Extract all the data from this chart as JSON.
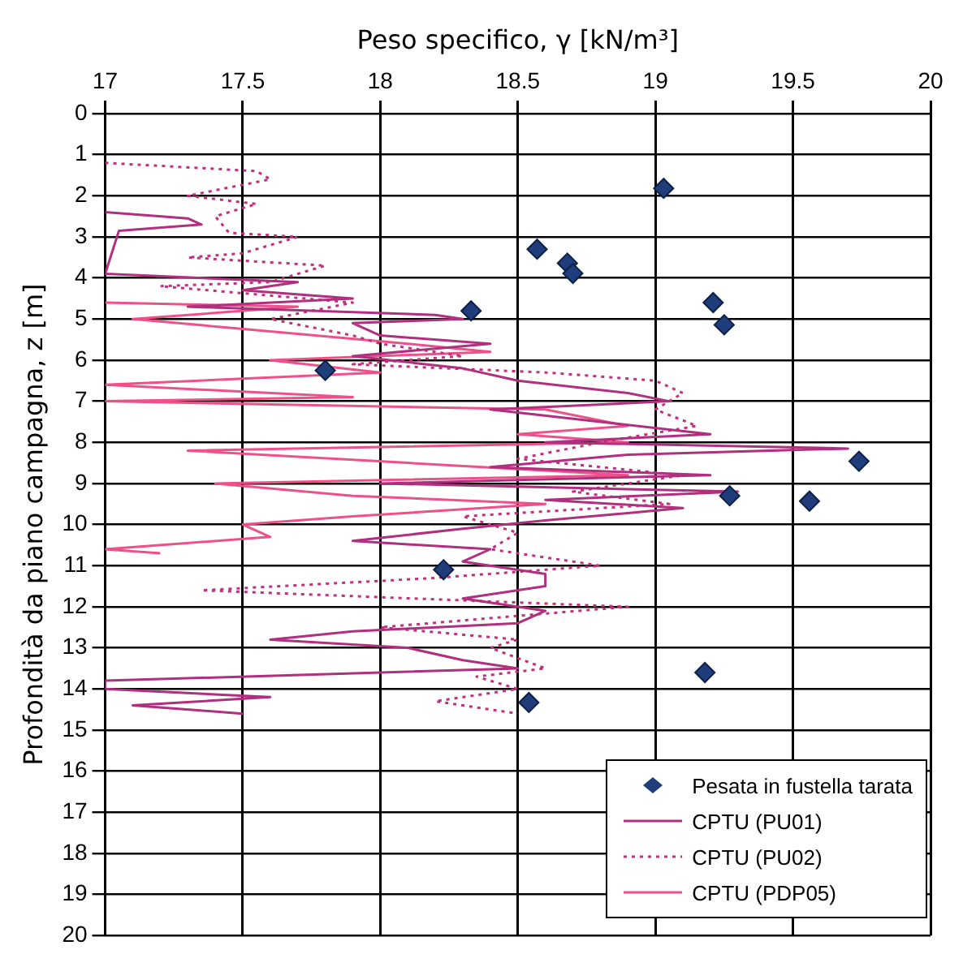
{
  "chart_data": {
    "type": "scatter",
    "xlabel": "Peso specifico, γ [kN/m³]",
    "ylabel": "Profondità da piano campagna, z [m]",
    "xlim": [
      17,
      20
    ],
    "xticks": [
      17,
      17.5,
      18,
      18.5,
      19,
      19.5,
      20
    ],
    "ylim": [
      20,
      0
    ],
    "yticks": [
      0,
      1,
      2,
      3,
      4,
      5,
      6,
      7,
      8,
      9,
      10,
      11,
      12,
      13,
      14,
      15,
      16,
      17,
      18,
      19,
      20
    ],
    "grid": true,
    "legend": "bottom right",
    "series": [
      {
        "name": "Pesata in fustella tarata",
        "type": "scatter",
        "marker": "diamond",
        "color": "#1f3d7a",
        "x": [
          19.03,
          18.57,
          18.68,
          18.7,
          19.21,
          19.25,
          18.33,
          17.8,
          19.74,
          19.27,
          19.56,
          18.23,
          19.18,
          18.54
        ],
        "values": [
          1.82,
          3.3,
          3.64,
          3.89,
          4.6,
          5.14,
          4.8,
          6.25,
          8.46,
          9.3,
          9.43,
          11.1,
          13.6,
          14.33
        ]
      },
      {
        "name": "CPTU (PU01)",
        "type": "line",
        "line_style": "solid",
        "color": "#b0307f",
        "x": [
          17.0,
          17.3,
          17.35,
          17.05,
          17.0,
          17.7,
          17.5,
          17.9,
          17.3,
          18.2,
          18.3,
          17.9,
          18.0,
          18.4,
          17.9,
          18.3,
          18.5,
          18.9,
          19.05,
          18.4,
          18.8,
          19.2,
          18.6,
          19.7,
          18.9,
          18.4,
          19.2,
          18.0,
          19.3,
          18.6,
          19.1,
          18.6,
          18.3,
          17.9,
          18.4,
          18.3,
          18.6,
          18.6,
          18.3,
          18.6,
          18.5,
          17.9,
          17.6,
          18.1,
          18.3,
          18.5,
          17.0,
          17.0,
          17.6,
          17.1,
          17.5
        ],
        "values": [
          2.4,
          2.55,
          2.7,
          2.85,
          3.9,
          4.1,
          4.3,
          4.5,
          4.7,
          4.9,
          5.0,
          5.1,
          5.4,
          5.6,
          5.9,
          6.2,
          6.5,
          6.8,
          7.0,
          7.2,
          7.5,
          7.8,
          8.0,
          8.15,
          8.3,
          8.6,
          8.8,
          9.0,
          9.2,
          9.4,
          9.6,
          9.9,
          10.1,
          10.4,
          10.6,
          10.9,
          11.2,
          11.5,
          11.8,
          12.1,
          12.4,
          12.6,
          12.8,
          13.0,
          13.3,
          13.5,
          13.8,
          14.0,
          14.2,
          14.4,
          14.6
        ]
      },
      {
        "name": "CPTU (PU02)",
        "type": "line",
        "line_style": "dotted",
        "color": "#c0307f",
        "x": [
          17.0,
          17.55,
          17.6,
          17.3,
          17.55,
          17.4,
          17.45,
          17.7,
          17.5,
          17.3,
          17.8,
          17.6,
          17.2,
          17.9,
          17.6,
          17.9,
          18.0,
          18.3,
          17.9,
          18.6,
          19.0,
          19.1,
          19.0,
          19.15,
          18.8,
          18.5,
          19.1,
          18.7,
          19.05,
          18.3,
          18.5,
          18.4,
          18.8,
          18.2,
          17.35,
          18.9,
          18.0,
          18.5,
          18.4,
          18.6,
          18.35,
          18.5,
          18.2,
          18.5
        ],
        "values": [
          1.2,
          1.4,
          1.6,
          2.0,
          2.2,
          2.5,
          2.9,
          3.0,
          3.4,
          3.5,
          3.7,
          4.1,
          4.2,
          4.6,
          5.0,
          5.4,
          5.6,
          5.9,
          6.1,
          6.3,
          6.5,
          6.8,
          7.2,
          7.6,
          8.0,
          8.4,
          8.8,
          9.2,
          9.5,
          9.8,
          10.2,
          10.6,
          11.0,
          11.3,
          11.6,
          12.0,
          12.5,
          12.8,
          13.0,
          13.5,
          13.7,
          14.0,
          14.3,
          14.6
        ]
      },
      {
        "name": "CPTU (PDP05)",
        "type": "line",
        "line_style": "solid",
        "color": "#f0508a",
        "x": [
          17.0,
          17.7,
          17.1,
          17.6,
          18.1,
          18.4,
          17.6,
          18.0,
          17.0,
          17.9,
          17.0,
          18.6,
          18.9,
          18.5,
          18.9,
          17.3,
          18.1,
          18.9,
          17.4,
          17.9,
          18.6,
          17.9,
          17.5,
          17.6,
          17.0,
          17.2
        ],
        "values": [
          4.6,
          4.7,
          5.0,
          5.3,
          5.6,
          5.8,
          6.0,
          6.3,
          6.6,
          6.9,
          7.0,
          7.2,
          7.6,
          7.8,
          8.0,
          8.2,
          8.5,
          8.8,
          9.0,
          9.3,
          9.5,
          9.8,
          10.0,
          10.3,
          10.6,
          10.7
        ]
      }
    ]
  }
}
